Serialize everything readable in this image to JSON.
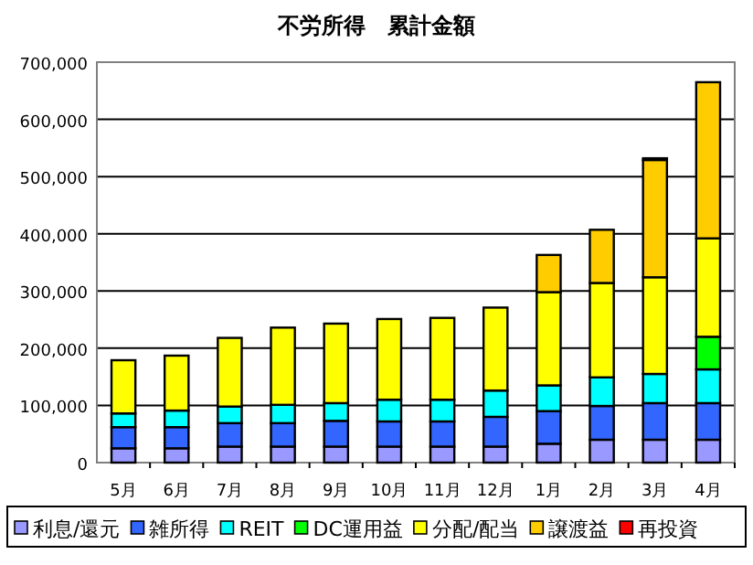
{
  "chart_data": {
    "type": "bar",
    "stacked": true,
    "title": "不労所得　累計金額",
    "categories": [
      "5月",
      "6月",
      "7月",
      "8月",
      "9月",
      "10月",
      "11月",
      "12月",
      "1月",
      "2月",
      "3月",
      "4月"
    ],
    "series": [
      {
        "name": "利息/還元",
        "color": "#9999ff",
        "values": [
          25000,
          25000,
          28000,
          28000,
          28000,
          28000,
          28000,
          28000,
          33000,
          40000,
          40000,
          40000
        ]
      },
      {
        "name": "雑所得",
        "color": "#3366ff",
        "values": [
          37000,
          37000,
          41000,
          41000,
          45000,
          44000,
          44000,
          52000,
          57000,
          59000,
          64000,
          64000
        ]
      },
      {
        "name": "REIT",
        "color": "#00ffff",
        "values": [
          24000,
          29000,
          29000,
          32000,
          31000,
          38000,
          38000,
          46000,
          45000,
          50000,
          51000,
          59000
        ]
      },
      {
        "name": "DC運用益",
        "color": "#00ff00",
        "values": [
          null,
          null,
          null,
          null,
          null,
          null,
          null,
          null,
          null,
          null,
          null,
          57000
        ]
      },
      {
        "name": "分配/配当",
        "color": "#ffff00",
        "values": [
          93000,
          96000,
          120000,
          135000,
          139000,
          141000,
          143000,
          145000,
          163000,
          165000,
          169000,
          172000
        ]
      },
      {
        "name": "譲渡益",
        "color": "#ffcc00",
        "values": [
          null,
          null,
          null,
          null,
          null,
          null,
          null,
          null,
          65000,
          93000,
          205000,
          273000
        ]
      },
      {
        "name": "再投資",
        "color": "#ff0000",
        "values": [
          null,
          null,
          null,
          null,
          null,
          null,
          null,
          null,
          null,
          null,
          3000,
          null
        ]
      }
    ],
    "ylim": [
      0,
      700000
    ],
    "yticks": [
      {
        "value": 0,
        "label": "0"
      },
      {
        "value": 100000,
        "label": "100,000"
      },
      {
        "value": 200000,
        "label": "200,000"
      },
      {
        "value": 300000,
        "label": "300,000"
      },
      {
        "value": 400000,
        "label": "400,000"
      },
      {
        "value": 500000,
        "label": "500,000"
      },
      {
        "value": 600000,
        "label": "600,000"
      },
      {
        "value": 700000,
        "label": "700,000"
      }
    ],
    "grid": "y",
    "legend": "bottom"
  }
}
